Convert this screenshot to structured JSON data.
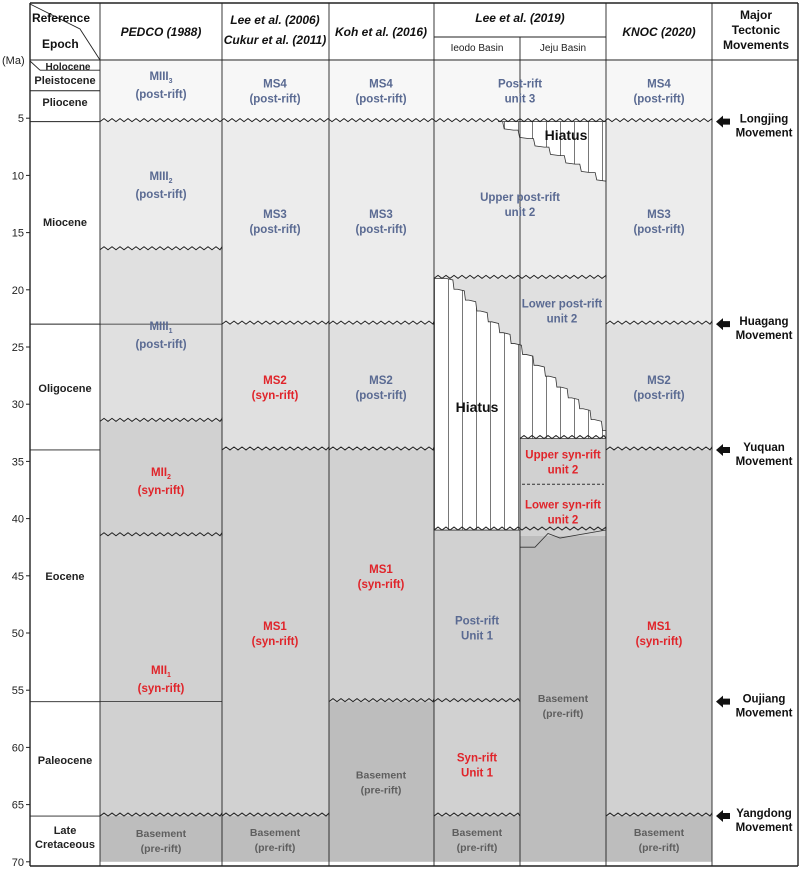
{
  "header": {
    "reference": "Reference",
    "epoch": "Epoch",
    "unit_label": "(Ma)",
    "columns": [
      "PEDCO (1988)",
      "Lee et al. (2006)",
      "Cukur et al. (2011)",
      "Koh et al. (2016)",
      "Lee et al. (2019)",
      "KNOC (2020)"
    ],
    "lee2019_sub": [
      "Ieodo Basin",
      "Jeju Basin"
    ],
    "tectonic": [
      "Major",
      "Tectonic",
      "Movements"
    ]
  },
  "epochs": [
    "Holocene",
    "Pleistocene",
    "Pliocene",
    "Miocene",
    "Oligocene",
    "Eocene",
    "Paleocene",
    "Late",
    "Cretaceous"
  ],
  "epoch_boundaries_ma": [
    0,
    0.8,
    2.6,
    5.3,
    23,
    34,
    56,
    66,
    70
  ],
  "age_ticks": [
    "5",
    "10",
    "15",
    "20",
    "25",
    "30",
    "35",
    "40",
    "45",
    "50",
    "55",
    "60",
    "65",
    "70"
  ],
  "colors": {
    "shade0": "#f7f7f7",
    "shade1": "#ececec",
    "shade2": "#e0e0e0",
    "shade3": "#d1d1d1",
    "basement": "#bdbdbd",
    "post_rift_text": "#5a6a92",
    "syn_rift_text": "#e0242a",
    "basement_text": "#5e5e5e"
  },
  "units": {
    "pedco": [
      {
        "name": "MIII",
        "sub": "3",
        "desc": "(post-rift)",
        "top": 0,
        "base": 5.3
      },
      {
        "name": "MIII",
        "sub": "2",
        "desc": "(post-rift)",
        "top": 5.3,
        "base": 16.5
      },
      {
        "name": "MIII",
        "sub": "1",
        "desc": "(post-rift)",
        "top": 16.5,
        "base": 31.5
      },
      {
        "name": "MII",
        "sub": "2",
        "desc": "(syn-rift)",
        "top": 31.5,
        "base": 41.5
      },
      {
        "name": "MII",
        "sub": "1",
        "desc": "(syn-rift)",
        "top": 41.5,
        "base": 66
      },
      {
        "name": "Basement",
        "desc": "(pre-rift)",
        "top": 66,
        "base": 70
      }
    ],
    "lee2006": [
      {
        "name": "MS4",
        "desc": "(post-rift)"
      },
      {
        "name": "MS3",
        "desc": "(post-rift)"
      },
      {
        "name": "MS2",
        "desc": "(syn-rift)"
      },
      {
        "name": "MS1",
        "desc": "(syn-rift)"
      },
      {
        "name": "Basement",
        "desc": "(pre-rift)"
      }
    ],
    "koh2016": [
      {
        "name": "MS4",
        "desc": "(post-rift)"
      },
      {
        "name": "MS3",
        "desc": "(post-rift)"
      },
      {
        "name": "MS2",
        "desc": "(post-rift)"
      },
      {
        "name": "MS1",
        "desc": "(syn-rift)"
      },
      {
        "name": "Basement",
        "desc": "(pre-rift)"
      }
    ],
    "lee2019": [
      {
        "name": "Post-rift",
        "desc": "unit 3"
      },
      {
        "name": "Upper post-rift",
        "desc": "unit 2"
      },
      {
        "name": "Lower post-rift",
        "desc": "unit 2"
      },
      {
        "name": "Upper syn-rift",
        "desc": "unit 2"
      },
      {
        "name": "Lower syn-rift",
        "desc": "unit 2"
      },
      {
        "name": "Post-rift",
        "desc": "Unit 1"
      },
      {
        "name": "Syn-rift",
        "desc": "Unit 1"
      },
      {
        "name": "Basement",
        "desc": "(pre-rift)"
      },
      {
        "name": "Basement",
        "desc": "(pre-rift)"
      }
    ],
    "hiatus": "Hiatus",
    "knoc2020": [
      {
        "name": "MS4",
        "desc": "(post-rift)"
      },
      {
        "name": "MS3",
        "desc": "(post-rift)"
      },
      {
        "name": "MS2",
        "desc": "(post-rift)"
      },
      {
        "name": "MS1",
        "desc": "(syn-rift)"
      },
      {
        "name": "Basement",
        "desc": "(pre-rift)"
      }
    ]
  },
  "movements": [
    {
      "name": "Longjing",
      "label": "Movement",
      "age_ma": 5.3
    },
    {
      "name": "Huagang",
      "label": "Movement",
      "age_ma": 23
    },
    {
      "name": "Yuquan",
      "label": "Movement",
      "age_ma": 34
    },
    {
      "name": "Oujiang",
      "label": "Movement",
      "age_ma": 56
    },
    {
      "name": "Yangdong",
      "label": "Movement",
      "age_ma": 66
    }
  ]
}
